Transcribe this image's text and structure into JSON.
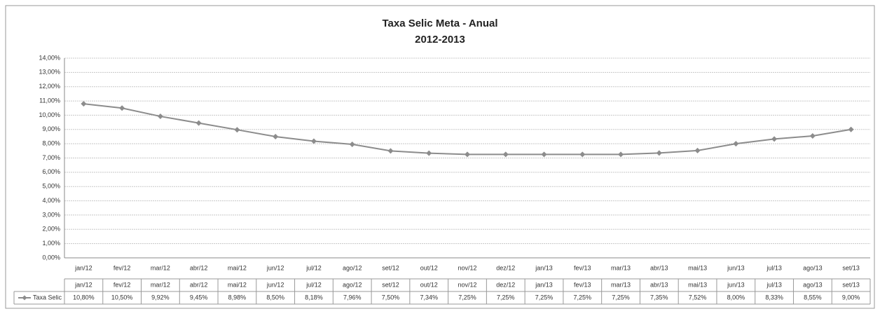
{
  "chart_data": {
    "type": "line",
    "title": "Taxa Selic Meta - Anual",
    "subtitle": "2012-2013",
    "categories": [
      "jan/12",
      "fev/12",
      "mar/12",
      "abr/12",
      "mai/12",
      "jun/12",
      "jul/12",
      "ago/12",
      "set/12",
      "out/12",
      "nov/12",
      "dez/12",
      "jan/13",
      "fev/13",
      "mar/13",
      "abr/13",
      "mai/13",
      "jun/13",
      "jul/13",
      "ago/13",
      "set/13"
    ],
    "series": [
      {
        "name": "Taxa Selic",
        "color": "#8c8c8c",
        "values": [
          10.8,
          10.5,
          9.92,
          9.45,
          8.98,
          8.5,
          8.18,
          7.96,
          7.5,
          7.34,
          7.25,
          7.25,
          7.25,
          7.25,
          7.25,
          7.35,
          7.52,
          8.0,
          8.33,
          8.55,
          9.0
        ],
        "value_labels": [
          "10,80%",
          "10,50%",
          "9,92%",
          "9,45%",
          "8,98%",
          "8,50%",
          "8,18%",
          "7,96%",
          "7,50%",
          "7,34%",
          "7,25%",
          "7,25%",
          "7,25%",
          "7,25%",
          "7,25%",
          "7,35%",
          "7,52%",
          "8,00%",
          "8,33%",
          "8,55%",
          "9,00%"
        ]
      }
    ],
    "ylim": [
      0,
      14
    ],
    "yticks": [
      {
        "value": 0,
        "label": "0,00%"
      },
      {
        "value": 1,
        "label": "1,00%"
      },
      {
        "value": 2,
        "label": "2,00%"
      },
      {
        "value": 3,
        "label": "3,00%"
      },
      {
        "value": 4,
        "label": "4,00%"
      },
      {
        "value": 5,
        "label": "5,00%"
      },
      {
        "value": 6,
        "label": "6,00%"
      },
      {
        "value": 7,
        "label": "7,00%"
      },
      {
        "value": 8,
        "label": "8,00%"
      },
      {
        "value": 9,
        "label": "9,00%"
      },
      {
        "value": 10,
        "label": "10,00%"
      },
      {
        "value": 11,
        "label": "11,00%"
      },
      {
        "value": 12,
        "label": "12,00%"
      },
      {
        "value": 13,
        "label": "13,00%"
      },
      {
        "value": 14,
        "label": "14,00%"
      }
    ],
    "grid": true
  }
}
